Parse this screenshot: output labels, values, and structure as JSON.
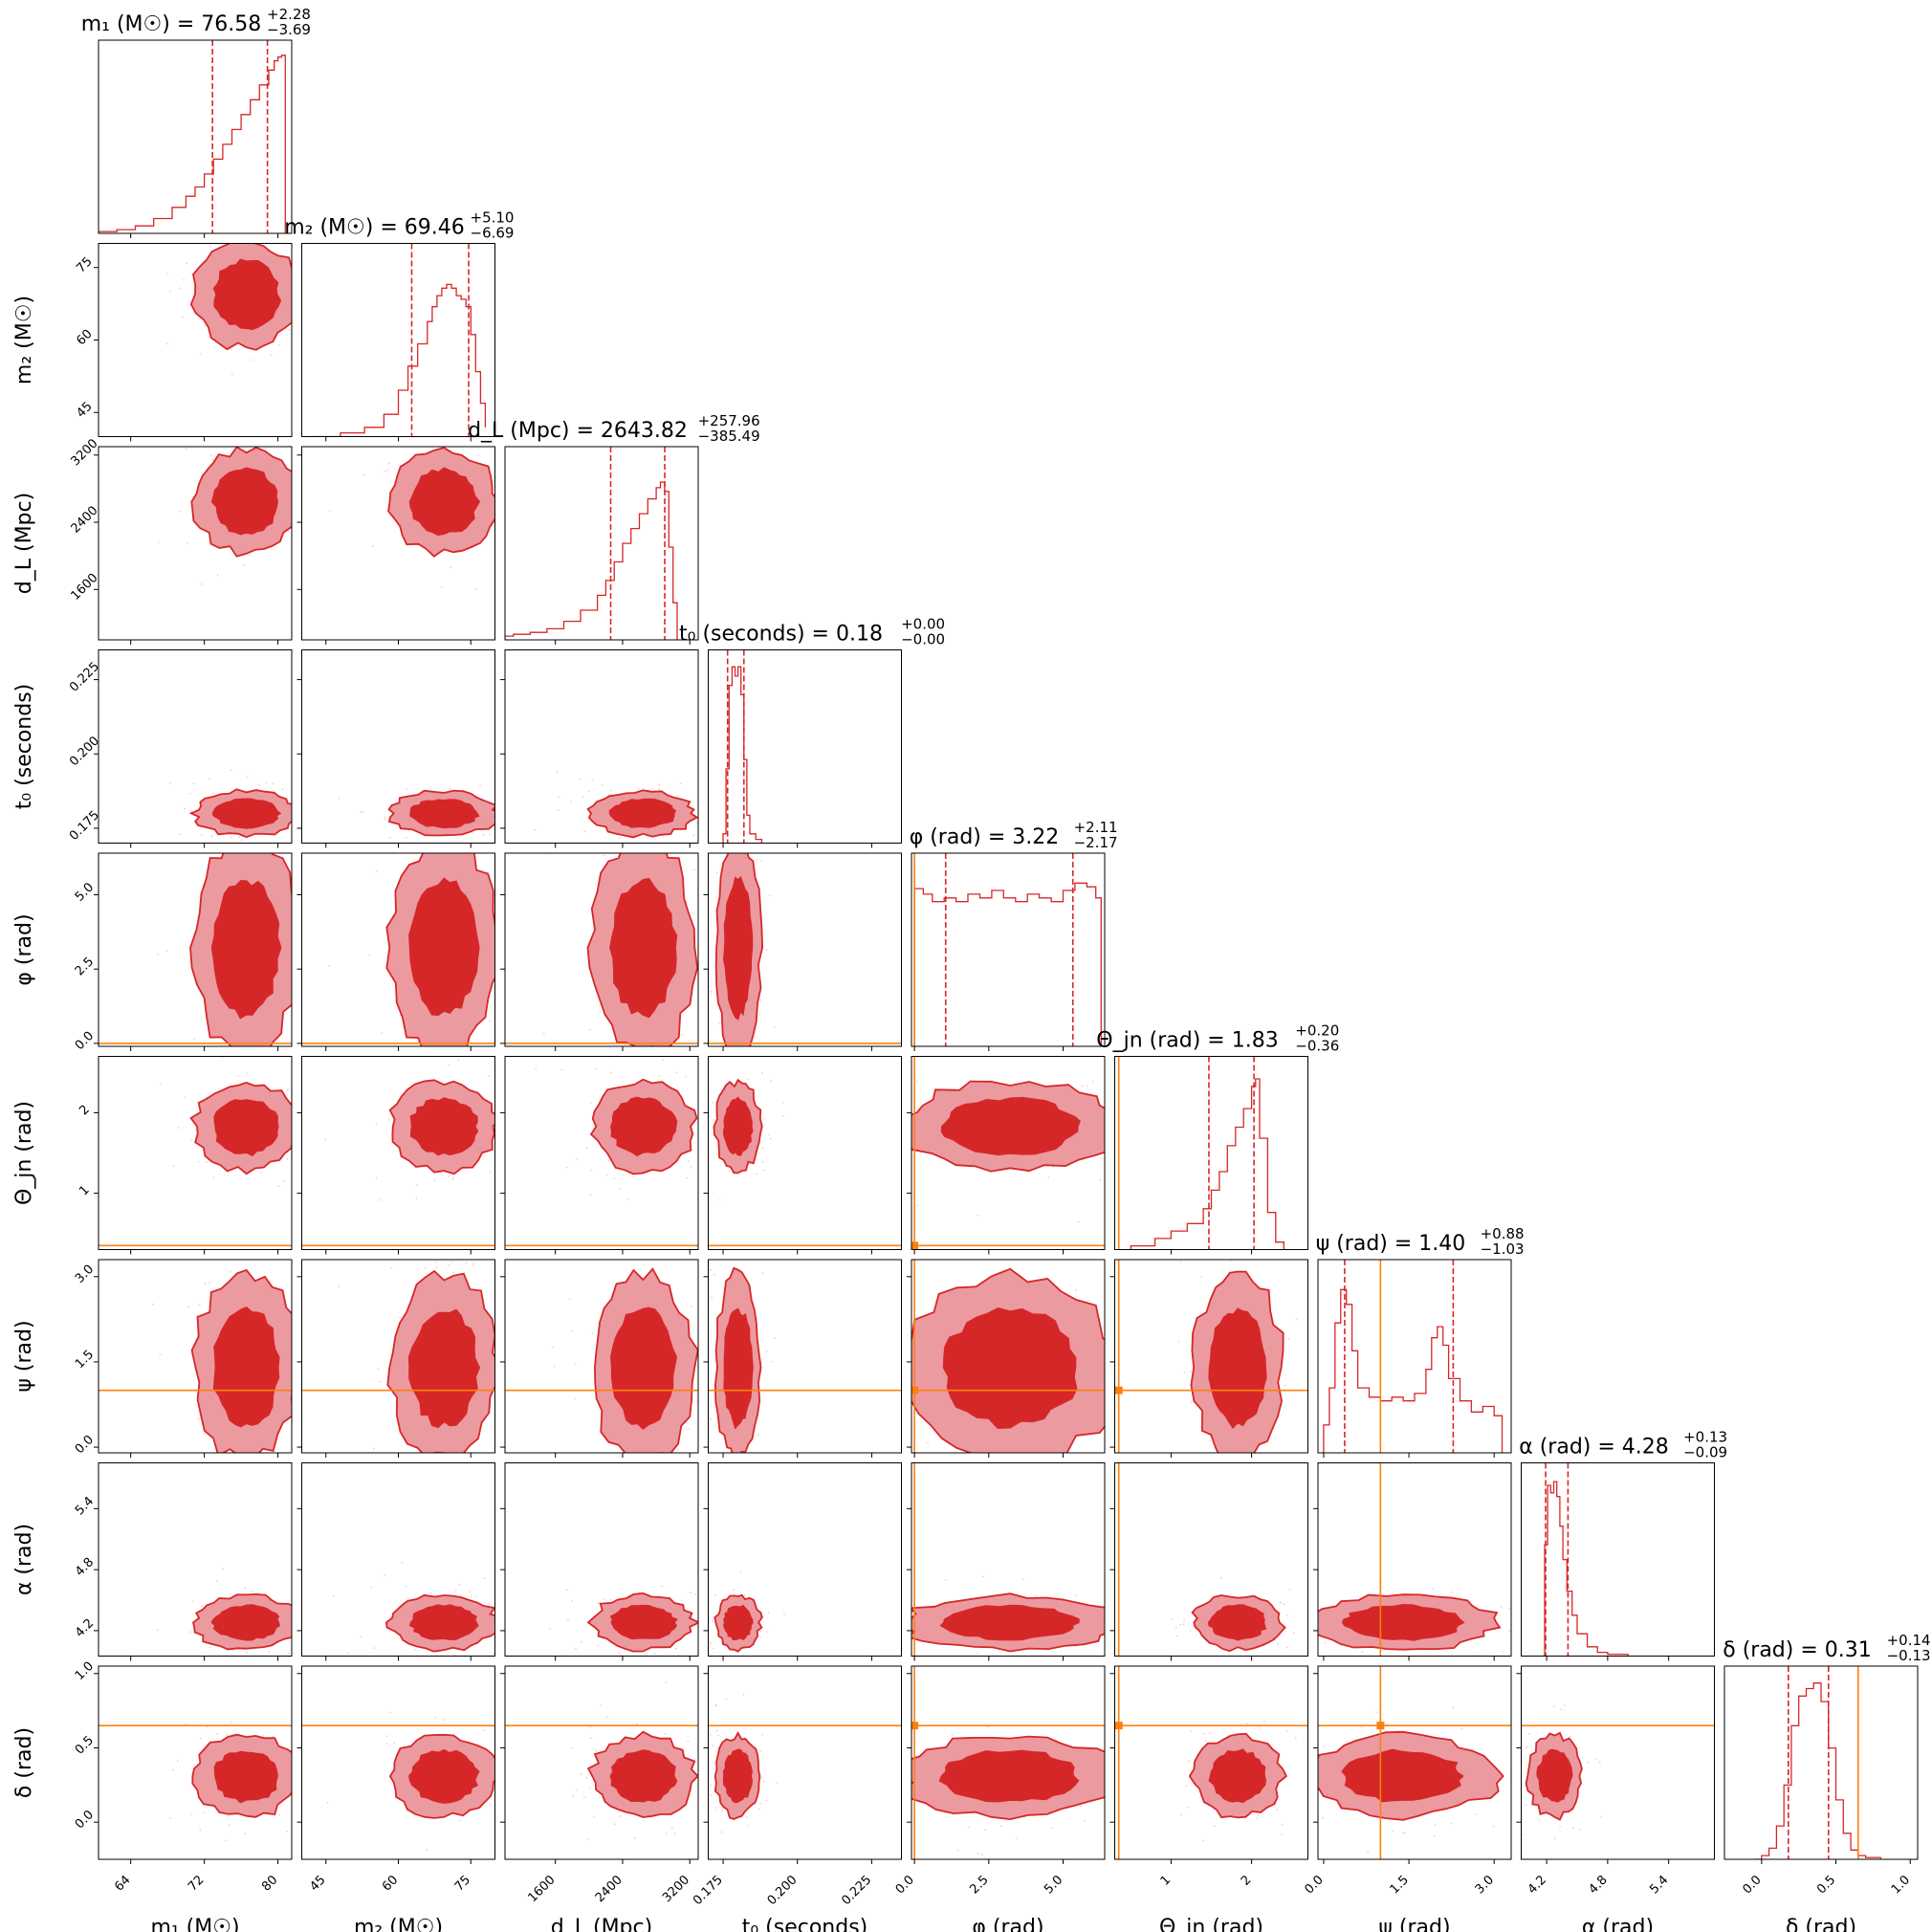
{
  "chart_data": {
    "type": "corner",
    "colors": {
      "posterior": "#d62728",
      "inner_fill": "#d62728",
      "outer_fill": "#eb9aa0",
      "dot": "#f4b3b8",
      "injection": "#ff7f0e",
      "axis": "#000000"
    },
    "parameters": [
      {
        "key": "m1",
        "label": "m₁ (M☉)",
        "title": "m₁ (M☉) = 76.58",
        "median": 76.58,
        "upper_err": "+2.28",
        "lower_err": "−3.69",
        "range": [
          60.5,
          81.5
        ],
        "ticks": [
          64,
          72,
          80
        ],
        "tick_labels": [
          "64",
          "72",
          "80"
        ],
        "quantiles": [
          72.89,
          78.86
        ],
        "hist_x": [
          60.5,
          62.5,
          64.5,
          66.5,
          68.5,
          70.0,
          71.0,
          72.0,
          73.0,
          74.0,
          75.0,
          76.0,
          77.0,
          78.0,
          79.0,
          79.6,
          80.0,
          80.4,
          80.8
        ],
        "hist_y": [
          0.01,
          0.02,
          0.04,
          0.08,
          0.14,
          0.2,
          0.25,
          0.32,
          0.4,
          0.48,
          0.56,
          0.64,
          0.72,
          0.8,
          0.88,
          0.93,
          0.95,
          0.96,
          0.0
        ]
      },
      {
        "key": "m2",
        "label": "m₂ (M☉)",
        "title": "m₂ (M☉) = 69.46",
        "median": 69.46,
        "upper_err": "+5.10",
        "lower_err": "−6.69",
        "range": [
          40,
          80
        ],
        "ticks": [
          45,
          60,
          75
        ],
        "tick_labels": [
          "45",
          "60",
          "75"
        ],
        "quantiles": [
          62.77,
          74.56
        ],
        "hist_x": [
          42,
          48,
          53,
          57,
          60,
          62,
          64,
          66,
          67,
          68,
          69,
          70,
          71,
          72,
          73,
          74,
          75,
          76,
          77,
          78
        ],
        "hist_y": [
          0.0,
          0.02,
          0.05,
          0.12,
          0.25,
          0.38,
          0.5,
          0.62,
          0.7,
          0.76,
          0.8,
          0.82,
          0.8,
          0.76,
          0.74,
          0.7,
          0.55,
          0.35,
          0.18,
          0.05
        ]
      },
      {
        "key": "dL",
        "label": "d_L (Mpc)",
        "title": "d_L (Mpc) = 2643.82",
        "median": 2643.82,
        "upper_err": "+257.96",
        "lower_err": "−385.49",
        "range": [
          1000,
          3300
        ],
        "ticks": [
          1600,
          2400,
          3200
        ],
        "tick_labels": [
          "1600",
          "2400",
          "3200"
        ],
        "quantiles": [
          2258.33,
          2901.78
        ],
        "hist_x": [
          1000,
          1100,
          1300,
          1500,
          1700,
          1900,
          2100,
          2200,
          2300,
          2400,
          2500,
          2600,
          2700,
          2800,
          2850,
          2900,
          2950,
          3000,
          3050
        ],
        "hist_y": [
          0.02,
          0.03,
          0.04,
          0.06,
          0.1,
          0.16,
          0.24,
          0.32,
          0.42,
          0.52,
          0.6,
          0.68,
          0.76,
          0.82,
          0.85,
          0.8,
          0.5,
          0.2,
          0.0
        ]
      },
      {
        "key": "t0",
        "label": "t₀ (seconds)",
        "title": "t₀ (seconds) = 0.18",
        "median": 0.18,
        "upper_err": "+0.00",
        "lower_err": "−0.00",
        "range": [
          0.17,
          0.235
        ],
        "ticks": [
          0.175,
          0.2,
          0.225
        ],
        "tick_labels": [
          "0.175",
          "0.200",
          "0.225"
        ],
        "quantiles": [
          0.1765,
          0.182
        ],
        "hist_x": [
          0.174,
          0.175,
          0.176,
          0.177,
          0.178,
          0.179,
          0.18,
          0.181,
          0.182,
          0.183,
          0.184,
          0.186,
          0.188
        ],
        "hist_y": [
          0.0,
          0.05,
          0.4,
          0.85,
          0.95,
          0.9,
          0.95,
          0.8,
          0.45,
          0.15,
          0.05,
          0.02,
          0.0
        ]
      },
      {
        "key": "phi",
        "label": "φ (rad)",
        "title": "φ (rad) = 3.22",
        "median": 3.22,
        "upper_err": "+2.11",
        "lower_err": "−2.17",
        "range": [
          -0.1,
          6.4
        ],
        "ticks": [
          0.0,
          2.5,
          5.0
        ],
        "tick_labels": [
          "0.0",
          "2.5",
          "5.0"
        ],
        "quantiles": [
          1.05,
          5.33
        ],
        "hist_x": [
          0.0,
          0.3,
          0.6,
          1.0,
          1.4,
          1.8,
          2.2,
          2.6,
          3.0,
          3.4,
          3.8,
          4.2,
          4.6,
          5.0,
          5.4,
          5.8,
          6.1,
          6.28
        ],
        "hist_y": [
          0.85,
          0.82,
          0.78,
          0.8,
          0.78,
          0.82,
          0.8,
          0.84,
          0.8,
          0.78,
          0.82,
          0.8,
          0.78,
          0.84,
          0.88,
          0.86,
          0.8,
          0.0
        ]
      },
      {
        "key": "thetajn",
        "label": "Θ_jn (rad)",
        "title": "Θ_jn (rad) = 1.83",
        "median": 1.83,
        "upper_err": "+0.20",
        "lower_err": "−0.36",
        "range": [
          0.3,
          2.7
        ],
        "ticks": [
          1,
          2
        ],
        "tick_labels": [
          "1",
          "2"
        ],
        "quantiles": [
          1.47,
          2.03
        ],
        "hist_x": [
          0.5,
          0.8,
          1.0,
          1.2,
          1.4,
          1.5,
          1.6,
          1.7,
          1.8,
          1.9,
          2.0,
          2.05,
          2.1,
          2.2,
          2.3,
          2.4
        ],
        "hist_y": [
          0.02,
          0.06,
          0.1,
          0.14,
          0.22,
          0.32,
          0.42,
          0.56,
          0.66,
          0.76,
          0.88,
          0.92,
          0.6,
          0.2,
          0.04,
          0.0
        ]
      },
      {
        "key": "psi",
        "label": "ψ (rad)",
        "title": "ψ (rad) = 1.40",
        "median": 1.4,
        "upper_err": "+0.88",
        "lower_err": "−1.03",
        "range": [
          -0.1,
          3.3
        ],
        "ticks": [
          0.0,
          1.5,
          3.0
        ],
        "tick_labels": [
          "0.0",
          "1.5",
          "3.0"
        ],
        "quantiles": [
          0.37,
          2.28
        ],
        "hist_x": [
          0.0,
          0.1,
          0.2,
          0.3,
          0.4,
          0.5,
          0.6,
          0.8,
          1.0,
          1.2,
          1.4,
          1.6,
          1.8,
          1.9,
          2.0,
          2.1,
          2.2,
          2.4,
          2.6,
          2.8,
          3.0,
          3.14
        ],
        "hist_y": [
          0.15,
          0.35,
          0.7,
          0.88,
          0.8,
          0.55,
          0.35,
          0.3,
          0.28,
          0.3,
          0.28,
          0.32,
          0.45,
          0.62,
          0.68,
          0.58,
          0.4,
          0.28,
          0.22,
          0.25,
          0.2,
          0.0
        ]
      },
      {
        "key": "alpha",
        "label": "α (rad)",
        "title": "α (rad) = 4.28",
        "median": 4.28,
        "upper_err": "+0.13",
        "lower_err": "−0.09",
        "range": [
          3.95,
          5.85
        ],
        "ticks": [
          4.2,
          4.8,
          5.4
        ],
        "tick_labels": [
          "4.2",
          "4.8",
          "5.4"
        ],
        "quantiles": [
          4.19,
          4.41
        ],
        "hist_x": [
          4.15,
          4.18,
          4.21,
          4.24,
          4.27,
          4.3,
          4.33,
          4.36,
          4.4,
          4.45,
          4.5,
          4.6,
          4.7,
          4.8,
          5.0
        ],
        "hist_y": [
          0.0,
          0.6,
          0.92,
          0.88,
          0.94,
          0.86,
          0.7,
          0.52,
          0.35,
          0.22,
          0.12,
          0.05,
          0.02,
          0.01,
          0.0
        ]
      },
      {
        "key": "delta",
        "label": "δ (rad)",
        "title": "δ (rad) = 0.31",
        "median": 0.31,
        "upper_err": "+0.14",
        "lower_err": "−0.13",
        "range": [
          -0.25,
          1.05
        ],
        "ticks": [
          0.0,
          0.5,
          1.0
        ],
        "tick_labels": [
          "0.0",
          "0.5",
          "1.0"
        ],
        "quantiles": [
          0.18,
          0.45
        ],
        "hist_x": [
          -0.05,
          0.0,
          0.05,
          0.1,
          0.15,
          0.2,
          0.25,
          0.3,
          0.35,
          0.4,
          0.45,
          0.5,
          0.55,
          0.6,
          0.65,
          0.7,
          0.8
        ],
        "hist_y": [
          0.0,
          0.02,
          0.06,
          0.18,
          0.4,
          0.72,
          0.88,
          0.92,
          0.95,
          0.85,
          0.6,
          0.32,
          0.14,
          0.05,
          0.02,
          0.01,
          0.0
        ]
      }
    ],
    "injection": {
      "m1": null,
      "m2": null,
      "dL": null,
      "t0": null,
      "phi": 0.0,
      "thetajn": 0.35,
      "psi": 1.0,
      "alpha": null,
      "delta": 0.65
    },
    "credible_regions": "2D contours at two levels with inner dark fill, outer light fill and scattered samples"
  }
}
